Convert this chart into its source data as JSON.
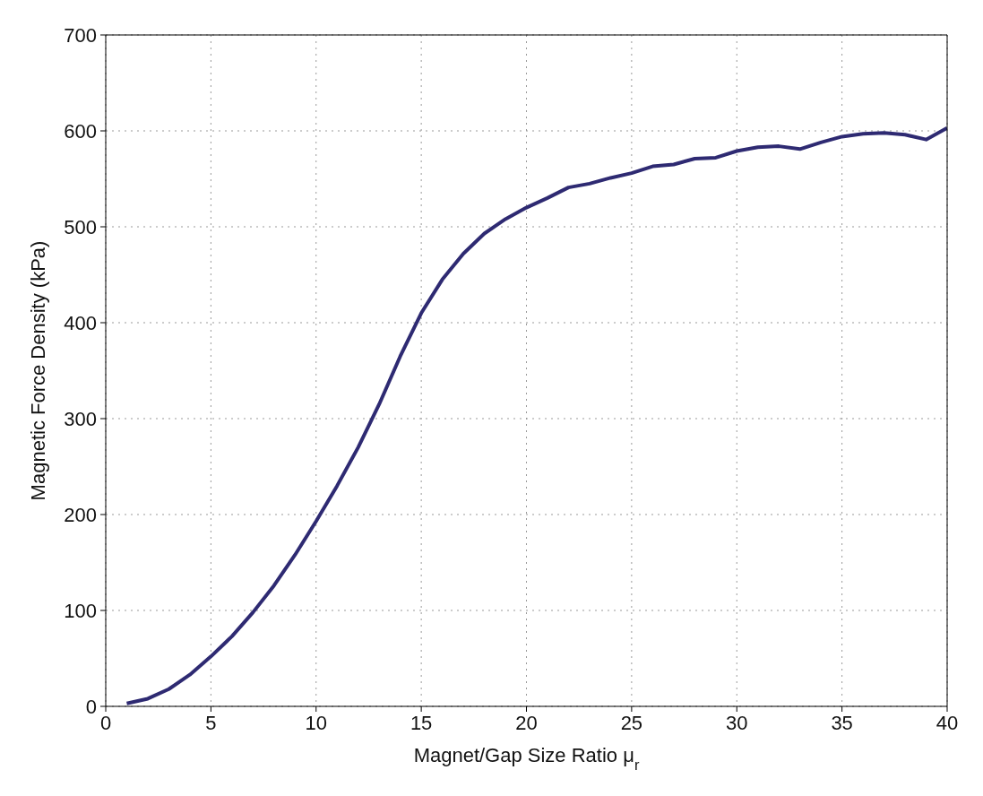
{
  "chart_data": {
    "type": "line",
    "xlabel": "Magnet/Gap Size Ratio μ$_{r}$",
    "ylabel": "Magnetic Force Density (kPa)",
    "x": [
      1,
      2,
      3,
      4,
      5,
      6,
      7,
      8,
      9,
      10,
      11,
      12,
      13,
      14,
      15,
      16,
      17,
      18,
      19,
      20,
      21,
      22,
      23,
      24,
      25,
      26,
      27,
      28,
      29,
      30,
      31,
      32,
      33,
      34,
      35,
      36,
      37,
      38,
      39,
      40
    ],
    "series": [
      {
        "color": "#2e2a72",
        "values": [
          3,
          8,
          18,
          33,
          52,
          73,
          98,
          126,
          158,
          193,
          230,
          270,
          315,
          365,
          410,
          445,
          472,
          493,
          508,
          520,
          530,
          541,
          545,
          551,
          556,
          563,
          565,
          571,
          572,
          579,
          583,
          584,
          581,
          588,
          594,
          597,
          598,
          596,
          591,
          603
        ]
      }
    ],
    "xlim": [
      0,
      40
    ],
    "ylim": [
      0,
      700
    ],
    "xticks": [
      0,
      5,
      10,
      15,
      20,
      25,
      30,
      35,
      40
    ],
    "yticks": [
      0,
      100,
      200,
      300,
      400,
      500,
      600,
      700
    ],
    "grid": true,
    "line_style": "solid",
    "marker": "none"
  }
}
